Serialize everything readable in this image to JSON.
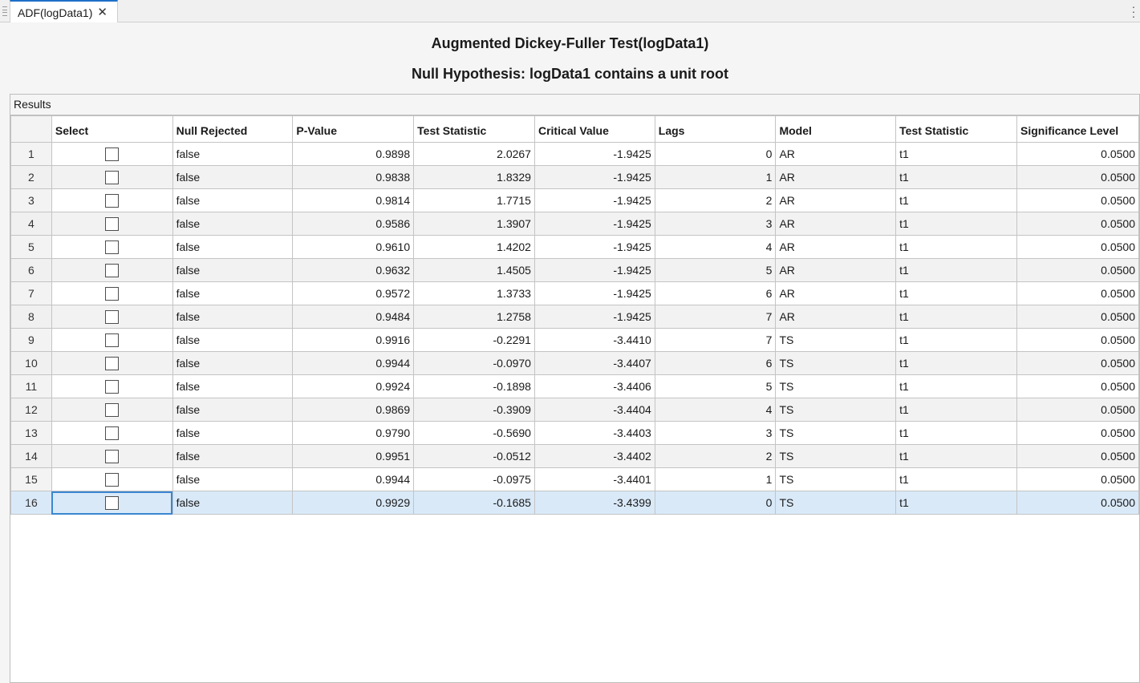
{
  "tab": {
    "label": "ADF(logData1)",
    "close_icon": "close-icon"
  },
  "title": "Augmented Dickey-Fuller Test(logData1)",
  "subtitle": "Null Hypothesis: logData1 contains a unit root",
  "panel_label": "Results",
  "columns": [
    "Select",
    "Null Rejected",
    "P-Value",
    "Test Statistic",
    "Critical Value",
    "Lags",
    "Model",
    "Test Statistic",
    "Significance Level"
  ],
  "rows": [
    [
      "1",
      "false",
      "0.9898",
      "2.0267",
      "-1.9425",
      "0",
      "AR",
      "t1",
      "0.0500"
    ],
    [
      "2",
      "false",
      "0.9838",
      "1.8329",
      "-1.9425",
      "1",
      "AR",
      "t1",
      "0.0500"
    ],
    [
      "3",
      "false",
      "0.9814",
      "1.7715",
      "-1.9425",
      "2",
      "AR",
      "t1",
      "0.0500"
    ],
    [
      "4",
      "false",
      "0.9586",
      "1.3907",
      "-1.9425",
      "3",
      "AR",
      "t1",
      "0.0500"
    ],
    [
      "5",
      "false",
      "0.9610",
      "1.4202",
      "-1.9425",
      "4",
      "AR",
      "t1",
      "0.0500"
    ],
    [
      "6",
      "false",
      "0.9632",
      "1.4505",
      "-1.9425",
      "5",
      "AR",
      "t1",
      "0.0500"
    ],
    [
      "7",
      "false",
      "0.9572",
      "1.3733",
      "-1.9425",
      "6",
      "AR",
      "t1",
      "0.0500"
    ],
    [
      "8",
      "false",
      "0.9484",
      "1.2758",
      "-1.9425",
      "7",
      "AR",
      "t1",
      "0.0500"
    ],
    [
      "9",
      "false",
      "0.9916",
      "-0.2291",
      "-3.4410",
      "7",
      "TS",
      "t1",
      "0.0500"
    ],
    [
      "10",
      "false",
      "0.9944",
      "-0.0970",
      "-3.4407",
      "6",
      "TS",
      "t1",
      "0.0500"
    ],
    [
      "11",
      "false",
      "0.9924",
      "-0.1898",
      "-3.4406",
      "5",
      "TS",
      "t1",
      "0.0500"
    ],
    [
      "12",
      "false",
      "0.9869",
      "-0.3909",
      "-3.4404",
      "4",
      "TS",
      "t1",
      "0.0500"
    ],
    [
      "13",
      "false",
      "0.9790",
      "-0.5690",
      "-3.4403",
      "3",
      "TS",
      "t1",
      "0.0500"
    ],
    [
      "14",
      "false",
      "0.9951",
      "-0.0512",
      "-3.4402",
      "2",
      "TS",
      "t1",
      "0.0500"
    ],
    [
      "15",
      "false",
      "0.9944",
      "-0.0975",
      "-3.4401",
      "1",
      "TS",
      "t1",
      "0.0500"
    ],
    [
      "16",
      "false",
      "0.9929",
      "-0.1685",
      "-3.4399",
      "0",
      "TS",
      "t1",
      "0.0500"
    ]
  ],
  "selected_row": 16,
  "colors": {
    "accent": "#1f6fc9",
    "selection": "#d9e9f8"
  }
}
